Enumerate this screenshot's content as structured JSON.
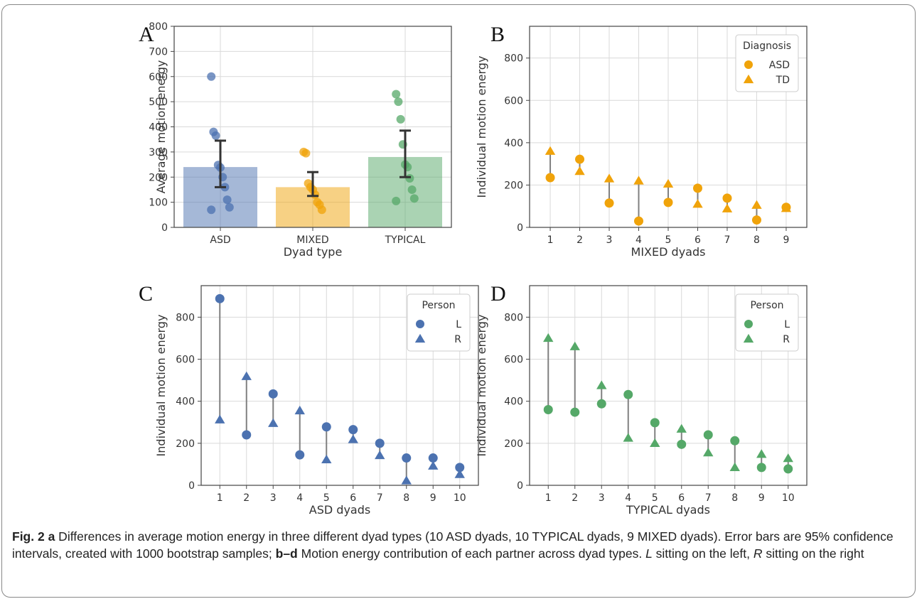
{
  "colors": {
    "asd": "#4c72b0",
    "mixed": "#f0a30a",
    "typical": "#55a868",
    "connector": "#808080",
    "errorbar": "#333333"
  },
  "chart_data": [
    {
      "panel": "A",
      "type": "bar",
      "xlabel": "Dyad type",
      "ylabel": "Average motion energy",
      "ylim": [
        0,
        800
      ],
      "yticks": [
        0,
        100,
        200,
        300,
        400,
        500,
        600,
        700,
        800
      ],
      "grid": true,
      "categories": [
        "ASD",
        "MIXED",
        "TYPICAL"
      ],
      "values": [
        240,
        160,
        280
      ],
      "ci": [
        [
          160,
          345
        ],
        [
          125,
          220
        ],
        [
          200,
          385
        ]
      ],
      "points": [
        [
          600,
          380,
          365,
          248,
          238,
          200,
          160,
          110,
          80,
          70
        ],
        [
          300,
          295,
          175,
          160,
          150,
          130,
          100,
          90,
          70
        ],
        [
          530,
          500,
          430,
          330,
          250,
          240,
          195,
          150,
          115,
          105
        ]
      ]
    },
    {
      "panel": "B",
      "type": "scatter",
      "xlabel": "MIXED dyads",
      "ylabel": "Individual motion energy",
      "ylim": [
        0,
        950
      ],
      "yticks": [
        0,
        200,
        400,
        600,
        800
      ],
      "x": [
        1,
        2,
        3,
        4,
        5,
        6,
        7,
        8,
        9
      ],
      "grid": true,
      "legend": {
        "title": "Diagnosis",
        "position": "top-right"
      },
      "series": [
        {
          "name": "ASD",
          "marker": "circle",
          "values": [
            235,
            322,
            115,
            30,
            118,
            185,
            138,
            35,
            95
          ]
        },
        {
          "name": "TD",
          "marker": "triangle",
          "values": [
            360,
            265,
            230,
            220,
            205,
            110,
            88,
            105,
            90
          ]
        }
      ]
    },
    {
      "panel": "C",
      "type": "scatter",
      "xlabel": "ASD dyads",
      "ylabel": "Individual motion energy",
      "ylim": [
        0,
        950
      ],
      "yticks": [
        0,
        200,
        400,
        600,
        800
      ],
      "x": [
        1,
        2,
        3,
        4,
        5,
        6,
        7,
        8,
        9,
        10
      ],
      "grid": true,
      "legend": {
        "title": "Person",
        "position": "top-right"
      },
      "series": [
        {
          "name": "L",
          "marker": "circle",
          "values": [
            888,
            240,
            435,
            145,
            278,
            265,
            200,
            130,
            130,
            85
          ]
        },
        {
          "name": "R",
          "marker": "triangle",
          "values": [
            312,
            518,
            295,
            355,
            122,
            218,
            142,
            22,
            92,
            52
          ]
        }
      ]
    },
    {
      "panel": "D",
      "type": "scatter",
      "xlabel": "TYPICAL dyads",
      "ylabel": "Individual motion energy",
      "ylim": [
        0,
        950
      ],
      "yticks": [
        0,
        200,
        400,
        600,
        800
      ],
      "x": [
        1,
        2,
        3,
        4,
        5,
        6,
        7,
        8,
        9,
        10
      ],
      "grid": true,
      "legend": {
        "title": "Person",
        "position": "top-right"
      },
      "series": [
        {
          "name": "L",
          "marker": "circle",
          "values": [
            360,
            348,
            388,
            432,
            298,
            195,
            240,
            212,
            85,
            78
          ]
        },
        {
          "name": "R",
          "marker": "triangle",
          "values": [
            700,
            660,
            475,
            225,
            200,
            268,
            155,
            85,
            148,
            128
          ]
        }
      ]
    }
  ],
  "caption": {
    "fig_label": "Fig. 2",
    "a_label": "a",
    "a_text": " Differences in average motion energy in three different dyad types (10 ASD dyads, 10 TYPICAL dyads, 9 MIXED dyads). Error bars are 95% confidence intervals, created with 1000 bootstrap samples; ",
    "bd_label": "b–d",
    "bd_text": " Motion energy contribution of each partner across dyad types. ",
    "l_label": "L",
    "l_text": " sitting on the left, ",
    "r_label": "R",
    "r_text": " sitting on the right"
  }
}
